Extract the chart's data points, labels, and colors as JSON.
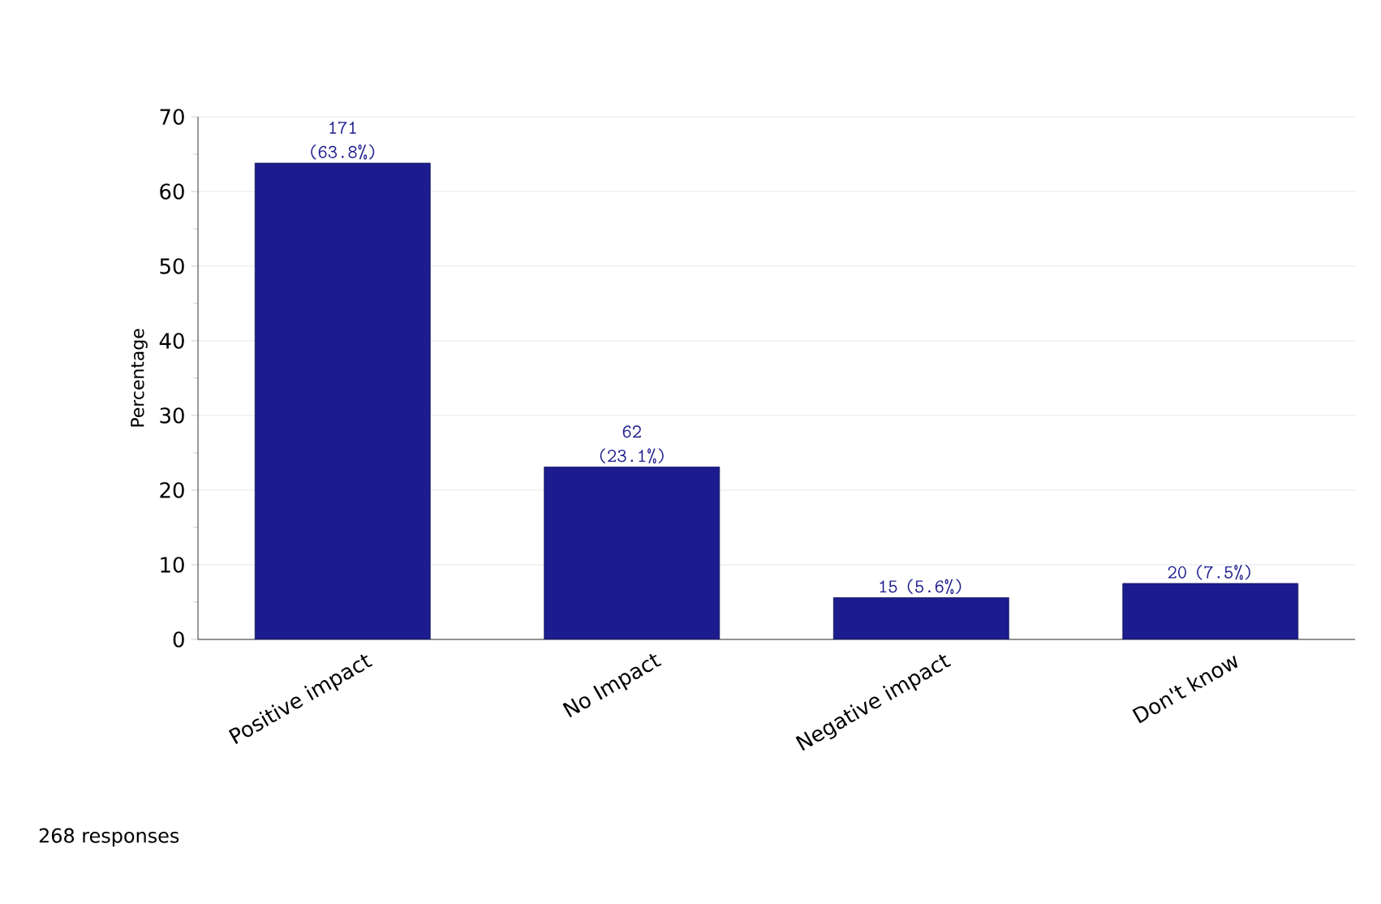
{
  "chart_data": {
    "type": "bar",
    "categories": [
      "Positive impact",
      "No Impact",
      "Negative impact",
      "Don't know"
    ],
    "values": [
      63.8,
      23.1,
      5.6,
      7.5
    ],
    "value_labels": [
      "171 (63.8%)",
      "62 (23.1%)",
      "15 (5.6%)",
      "20 (7.5%)"
    ],
    "color": "#1c1c8e",
    "ylabel": "Percentage",
    "ylim": [
      0,
      70
    ],
    "yticks": [
      0,
      10,
      20,
      30,
      40,
      50,
      60,
      70
    ],
    "grid": "y",
    "annotations": [
      "268 responses"
    ]
  }
}
